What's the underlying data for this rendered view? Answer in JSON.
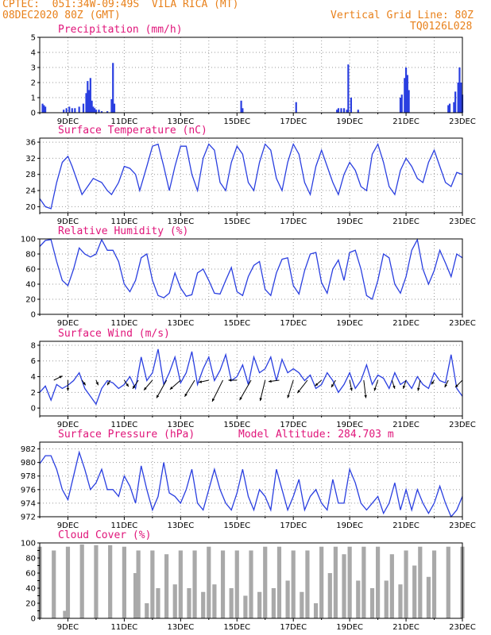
{
  "header": {
    "left_line1": "CPTEC:  051:34W-09:49S  VILA RICA (MT)",
    "left_line2": "08DEC2020 80Z (GMT)",
    "right_line1": "Vertical Grid Line: 80Z",
    "right_line2": "TQ0126L028"
  },
  "colors": {
    "series": "#2a3fe0",
    "title": "#e0157a",
    "header": "#e8801a",
    "cloud": "#a9a9a9"
  },
  "x_tick_labels": [
    "9DEC",
    "11DEC",
    "13DEC",
    "15DEC",
    "17DEC",
    "19DEC",
    "21DEC",
    "23DEC"
  ],
  "chart_data": [
    {
      "type": "bar",
      "title": "Precipitation (mm/h)",
      "ylim": [
        0,
        5
      ],
      "yticks": [
        0,
        1,
        2,
        3,
        4,
        5
      ],
      "grid": true,
      "x_days": [
        8.1,
        8.15,
        8.2,
        8.85,
        8.95,
        9.05,
        9.15,
        9.25,
        9.4,
        9.55,
        9.65,
        9.7,
        9.75,
        9.8,
        9.85,
        9.9,
        9.95,
        10.0,
        10.1,
        10.2,
        10.4,
        10.55,
        10.6,
        10.65,
        15.15,
        15.2,
        17.1,
        18.55,
        18.6,
        18.7,
        18.8,
        18.9,
        18.95,
        19.05,
        19.3,
        20.8,
        20.85,
        20.95,
        21.0,
        21.05,
        21.1,
        22.5,
        22.55,
        22.7,
        22.75,
        22.85,
        22.9,
        22.95,
        23.0
      ],
      "values": [
        0.6,
        0.5,
        0.4,
        0.2,
        0.3,
        0.4,
        0.3,
        0.3,
        0.4,
        0.6,
        1.3,
        2.1,
        1.5,
        2.3,
        0.8,
        0.4,
        0.3,
        0.2,
        0.2,
        0.1,
        0.1,
        0.9,
        3.3,
        0.6,
        0.8,
        0.3,
        0.7,
        0.2,
        0.3,
        0.3,
        0.3,
        0.2,
        3.2,
        1.0,
        0.2,
        1.0,
        1.2,
        2.3,
        3.0,
        2.5,
        1.5,
        0.5,
        0.6,
        0.7,
        1.4,
        2.0,
        3.0,
        2.0,
        1.2
      ]
    },
    {
      "type": "line",
      "title": "Surface Temperature (nC)",
      "ylim": [
        18.5,
        37
      ],
      "yticks": [
        20,
        24,
        28,
        32,
        36
      ],
      "grid": true,
      "x_days": [
        8.0,
        8.2,
        8.4,
        8.6,
        8.8,
        9.0,
        9.15,
        9.35,
        9.5,
        9.7,
        9.9,
        10.05,
        10.2,
        10.4,
        10.55,
        10.8,
        11.0,
        11.2,
        11.4,
        11.55,
        11.8,
        12.0,
        12.2,
        12.4,
        12.6,
        12.8,
        13.0,
        13.2,
        13.4,
        13.6,
        13.8,
        14.0,
        14.2,
        14.4,
        14.6,
        14.8,
        15.0,
        15.2,
        15.4,
        15.6,
        15.8,
        16.0,
        16.2,
        16.4,
        16.6,
        16.8,
        17.0,
        17.2,
        17.4,
        17.6,
        17.8,
        18.0,
        18.2,
        18.4,
        18.6,
        18.8,
        19.0,
        19.2,
        19.4,
        19.6,
        19.8,
        20.0,
        20.2,
        20.4,
        20.6,
        20.8,
        21.0,
        21.2,
        21.4,
        21.6,
        21.8,
        22.0,
        22.2,
        22.4,
        22.6,
        22.8,
        23.0
      ],
      "values": [
        22,
        20,
        19.5,
        26,
        31,
        32.5,
        30,
        26,
        23,
        25,
        27,
        26.5,
        26,
        24,
        23,
        26,
        30,
        29.5,
        28,
        24,
        30,
        35,
        35.5,
        30,
        24,
        30,
        35,
        35,
        28,
        24,
        32,
        35.5,
        34,
        26,
        24,
        31,
        35,
        33,
        26,
        24,
        31,
        35.5,
        34,
        27,
        24,
        31,
        35.5,
        33,
        26,
        23,
        30,
        34,
        30,
        26,
        23,
        28,
        31,
        29,
        25,
        24,
        33,
        35.5,
        31,
        25,
        23,
        29,
        32,
        30,
        27,
        26,
        31,
        34,
        30,
        26,
        25,
        28.5,
        28
      ]
    },
    {
      "type": "line",
      "title": "Relative Humidity (%)",
      "ylim": [
        0,
        100
      ],
      "yticks": [
        0,
        20,
        40,
        60,
        80,
        100
      ],
      "grid": true,
      "x_days": [
        8.0,
        8.2,
        8.4,
        8.6,
        8.8,
        9.0,
        9.2,
        9.4,
        9.6,
        9.8,
        10.0,
        10.2,
        10.4,
        10.6,
        10.8,
        11.0,
        11.2,
        11.4,
        11.6,
        11.8,
        12.0,
        12.2,
        12.4,
        12.6,
        12.8,
        13.0,
        13.2,
        13.4,
        13.6,
        13.8,
        14.0,
        14.2,
        14.4,
        14.6,
        14.8,
        15.0,
        15.2,
        15.4,
        15.6,
        15.8,
        16.0,
        16.2,
        16.4,
        16.6,
        16.8,
        17.0,
        17.2,
        17.4,
        17.6,
        17.8,
        18.0,
        18.2,
        18.4,
        18.6,
        18.8,
        19.0,
        19.2,
        19.4,
        19.6,
        19.8,
        20.0,
        20.2,
        20.4,
        20.6,
        20.8,
        21.0,
        21.2,
        21.4,
        21.6,
        21.8,
        22.0,
        22.2,
        22.4,
        22.6,
        22.8,
        23.0
      ],
      "values": [
        90,
        98,
        99,
        70,
        45,
        38,
        60,
        88,
        80,
        76,
        80,
        99,
        85,
        85,
        70,
        40,
        30,
        45,
        75,
        80,
        45,
        25,
        22,
        28,
        55,
        35,
        24,
        26,
        55,
        60,
        45,
        28,
        27,
        45,
        62,
        30,
        25,
        50,
        65,
        70,
        33,
        25,
        55,
        73,
        75,
        38,
        27,
        58,
        80,
        82,
        42,
        28,
        60,
        72,
        45,
        82,
        85,
        60,
        25,
        20,
        45,
        80,
        75,
        40,
        28,
        50,
        85,
        99,
        60,
        40,
        58,
        85,
        68,
        50,
        80,
        75
      ]
    },
    {
      "type": "line",
      "title": "Surface Wind (m/s)",
      "ylim": [
        -1,
        8.5
      ],
      "yticks": [
        0,
        2,
        4,
        6,
        8
      ],
      "grid": true,
      "x_days": [
        8.0,
        8.2,
        8.4,
        8.6,
        8.8,
        9.0,
        9.2,
        9.4,
        9.6,
        9.8,
        10.0,
        10.2,
        10.4,
        10.6,
        10.8,
        11.0,
        11.2,
        11.4,
        11.6,
        11.8,
        12.0,
        12.2,
        12.4,
        12.6,
        12.8,
        13.0,
        13.2,
        13.4,
        13.6,
        13.8,
        14.0,
        14.2,
        14.4,
        14.6,
        14.8,
        15.0,
        15.2,
        15.4,
        15.6,
        15.8,
        16.0,
        16.2,
        16.4,
        16.6,
        16.8,
        17.0,
        17.2,
        17.4,
        17.6,
        17.8,
        18.0,
        18.2,
        18.4,
        18.6,
        18.8,
        19.0,
        19.2,
        19.4,
        19.6,
        19.8,
        20.0,
        20.2,
        20.4,
        20.6,
        20.8,
        21.0,
        21.2,
        21.4,
        21.6,
        21.8,
        22.0,
        22.2,
        22.4,
        22.6,
        22.8,
        23.0
      ],
      "values": [
        2,
        2.8,
        1,
        3,
        2.5,
        2.9,
        3.5,
        4.5,
        2.5,
        1.5,
        0.5,
        2.5,
        3.5,
        3.2,
        2.5,
        3,
        4,
        2.5,
        6.5,
        3.5,
        4.5,
        7.5,
        3,
        4.5,
        6.5,
        3.2,
        4.5,
        7.2,
        3,
        5,
        6.5,
        3.5,
        4.8,
        6.8,
        3.5,
        4,
        5.5,
        3,
        6.5,
        4.5,
        5,
        6.5,
        3.5,
        6.2,
        4.5,
        5,
        4.5,
        3.5,
        4.2,
        2.5,
        3,
        4.5,
        3.5,
        2,
        3,
        4.5,
        2.5,
        3.5,
        5.5,
        3,
        4.2,
        3.8,
        2.5,
        4.5,
        3,
        3.5,
        2.5,
        4,
        3,
        2.5,
        4.5,
        3.5,
        3.2,
        6.8,
        2.5,
        1.5
      ],
      "arrow_days": [
        8.5,
        9.0,
        9.5,
        10.0,
        10.5,
        11.0,
        11.5,
        12.0,
        12.5,
        13.0,
        13.5,
        14.0,
        14.5,
        15.0,
        15.5,
        16.0,
        16.5,
        17.0,
        17.5,
        18.0,
        18.5,
        19.0,
        19.5,
        20.0,
        20.5,
        21.0,
        21.5,
        22.0,
        22.5,
        23.0
      ],
      "arrow_u": [
        1.2,
        0,
        0.5,
        0.3,
        -0.4,
        0.6,
        -0.8,
        -1.2,
        -1.4,
        -1.5,
        -1.4,
        -1.4,
        -1.5,
        -1.2,
        -1.6,
        -0.7,
        -1.5,
        -0.8,
        -1.4,
        -0.9,
        -0.6,
        0.3,
        0.3,
        -0.5,
        0.4,
        -0.4,
        -0.3,
        -0.4,
        -0.5,
        -1.0
      ],
      "arrow_v": [
        0.6,
        -1.5,
        -0.7,
        -0.7,
        -0.7,
        -0.9,
        -1.2,
        -1.4,
        -2.5,
        -1.3,
        -2.3,
        -0.3,
        -3.0,
        0,
        -2.8,
        -2.9,
        -0.2,
        -2.5,
        -1.8,
        -0.8,
        -1.0,
        -1.5,
        -2.5,
        -1.5,
        -1.2,
        -1.2,
        -1.5,
        -0.6,
        -1.0,
        -1.0
      ]
    },
    {
      "type": "line",
      "title": "Surface Pressure (hPa)",
      "annotation": "Model Altitude: 284.703 m",
      "ylim": [
        972,
        983
      ],
      "yticks": [
        972,
        974,
        976,
        978,
        980,
        982
      ],
      "grid": true,
      "x_days": [
        8.0,
        8.2,
        8.4,
        8.6,
        8.8,
        9.0,
        9.2,
        9.4,
        9.6,
        9.8,
        10.0,
        10.2,
        10.4,
        10.6,
        10.8,
        11.0,
        11.2,
        11.4,
        11.6,
        11.8,
        12.0,
        12.2,
        12.4,
        12.6,
        12.8,
        13.0,
        13.2,
        13.4,
        13.6,
        13.8,
        14.0,
        14.2,
        14.4,
        14.6,
        14.8,
        15.0,
        15.2,
        15.4,
        15.6,
        15.8,
        16.0,
        16.2,
        16.4,
        16.6,
        16.8,
        17.0,
        17.2,
        17.4,
        17.6,
        17.8,
        18.0,
        18.2,
        18.4,
        18.6,
        18.8,
        19.0,
        19.2,
        19.4,
        19.6,
        19.8,
        20.0,
        20.2,
        20.4,
        20.6,
        20.8,
        21.0,
        21.2,
        21.4,
        21.6,
        21.8,
        22.0,
        22.2,
        22.4,
        22.6,
        22.8,
        23.0
      ],
      "values": [
        979.8,
        981,
        981,
        979,
        976,
        974.5,
        978,
        981.5,
        979,
        976,
        977,
        979,
        976,
        976,
        975,
        978,
        976.5,
        974,
        979.5,
        976,
        973,
        975,
        980,
        975.5,
        975,
        974,
        976,
        979,
        974,
        973,
        976,
        979,
        976,
        974,
        973,
        975.5,
        979,
        975,
        973,
        976,
        975,
        973,
        979,
        976,
        973,
        975,
        977.5,
        973,
        975,
        976,
        974,
        973,
        977.5,
        974,
        974,
        979,
        977,
        974,
        973,
        974,
        975,
        972.5,
        974,
        977,
        973,
        976,
        973,
        976,
        974,
        972.5,
        974,
        976.5,
        974,
        972,
        973,
        975
      ]
    },
    {
      "type": "bar",
      "title": "Cloud Cover (%)",
      "ylim": [
        0,
        100
      ],
      "yticks": [
        0,
        10,
        20,
        30,
        40,
        50,
        60,
        70,
        80,
        90,
        100
      ],
      "ytick_labels": [
        0,
        20,
        40,
        60,
        80,
        100
      ],
      "grid": false,
      "x_days": [
        8.0,
        8.5,
        8.9,
        9.0,
        9.5,
        10.0,
        10.5,
        11.0,
        11.4,
        11.5,
        11.8,
        12.0,
        12.2,
        12.5,
        12.8,
        13.0,
        13.3,
        13.5,
        13.8,
        14.0,
        14.2,
        14.5,
        14.8,
        15.0,
        15.3,
        15.5,
        15.8,
        16.0,
        16.3,
        16.5,
        16.8,
        17.0,
        17.3,
        17.5,
        17.8,
        18.0,
        18.3,
        18.5,
        18.8,
        19.0,
        19.3,
        19.5,
        19.8,
        20.0,
        20.3,
        20.5,
        20.8,
        21.0,
        21.3,
        21.5,
        21.8,
        22.0,
        22.5,
        23.0
      ],
      "values": [
        95,
        90,
        10,
        95,
        98,
        97,
        97,
        95,
        60,
        90,
        20,
        90,
        40,
        85,
        45,
        90,
        40,
        90,
        35,
        95,
        45,
        90,
        40,
        90,
        30,
        90,
        35,
        95,
        40,
        95,
        50,
        90,
        35,
        90,
        20,
        95,
        60,
        95,
        85,
        95,
        50,
        95,
        40,
        95,
        50,
        85,
        45,
        90,
        70,
        95,
        55,
        90,
        95,
        95
      ]
    }
  ]
}
